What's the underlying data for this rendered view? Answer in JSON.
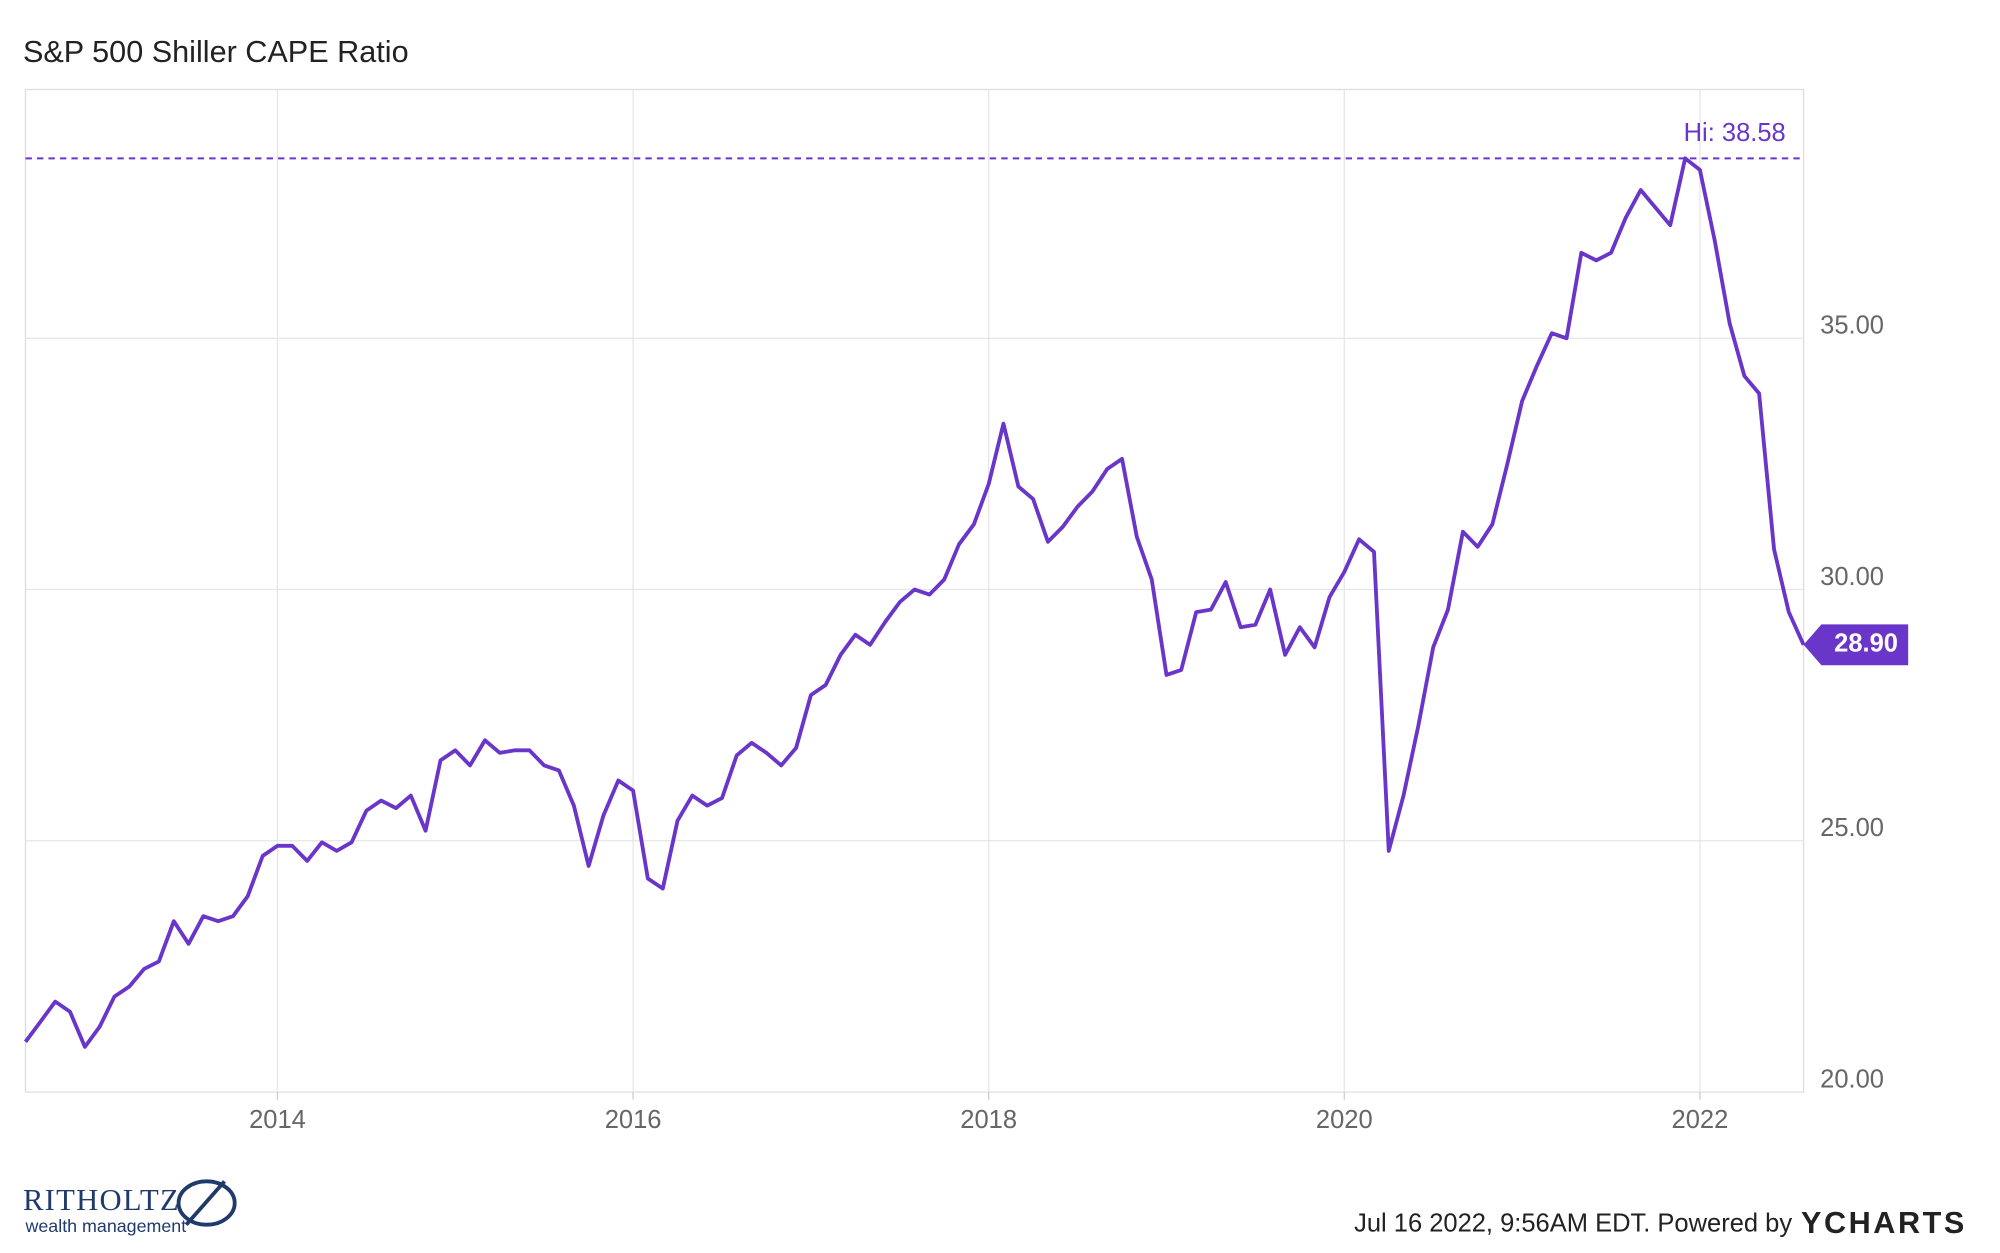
{
  "chart_data": {
    "type": "line",
    "title": "S&P 500 Shiller CAPE Ratio",
    "x": [
      2012.583,
      2012.667,
      2012.75,
      2012.833,
      2012.917,
      2013,
      2013.083,
      2013.167,
      2013.25,
      2013.333,
      2013.417,
      2013.5,
      2013.583,
      2013.667,
      2013.75,
      2013.833,
      2013.917,
      2014,
      2014.083,
      2014.167,
      2014.25,
      2014.333,
      2014.417,
      2014.5,
      2014.583,
      2014.667,
      2014.75,
      2014.833,
      2014.917,
      2015,
      2015.083,
      2015.167,
      2015.25,
      2015.333,
      2015.417,
      2015.5,
      2015.583,
      2015.667,
      2015.75,
      2015.833,
      2015.917,
      2016,
      2016.083,
      2016.167,
      2016.25,
      2016.333,
      2016.417,
      2016.5,
      2016.583,
      2016.667,
      2016.75,
      2016.833,
      2016.917,
      2017,
      2017.083,
      2017.167,
      2017.25,
      2017.333,
      2017.417,
      2017.5,
      2017.583,
      2017.667,
      2017.75,
      2017.833,
      2017.917,
      2018,
      2018.083,
      2018.167,
      2018.25,
      2018.333,
      2018.417,
      2018.5,
      2018.583,
      2018.667,
      2018.75,
      2018.833,
      2018.917,
      2019,
      2019.083,
      2019.167,
      2019.25,
      2019.333,
      2019.417,
      2019.5,
      2019.583,
      2019.667,
      2019.75,
      2019.833,
      2019.917,
      2020,
      2020.083,
      2020.167,
      2020.25,
      2020.333,
      2020.417,
      2020.5,
      2020.583,
      2020.667,
      2020.75,
      2020.833,
      2020.917,
      2021,
      2021.083,
      2021.167,
      2021.25,
      2021.333,
      2021.417,
      2021.5,
      2021.583,
      2021.667,
      2021.75,
      2021.833,
      2021.917,
      2022,
      2022.083,
      2022.167,
      2022.25,
      2022.333,
      2022.417,
      2022.5,
      2022.583
    ],
    "series": [
      {
        "name": "S&P 500 Shiller CAPE Ratio",
        "color": "#6a35c9",
        "values": [
          21.0,
          21.4,
          21.8,
          21.6,
          20.9,
          21.3,
          21.9,
          22.1,
          22.45,
          22.6,
          23.4,
          22.95,
          23.5,
          23.4,
          23.5,
          23.9,
          24.7,
          24.9,
          24.9,
          24.6,
          24.97,
          24.8,
          24.97,
          25.6,
          25.8,
          25.65,
          25.9,
          25.2,
          26.6,
          26.8,
          26.5,
          27.0,
          26.75,
          26.8,
          26.8,
          26.5,
          26.4,
          25.7,
          24.5,
          25.5,
          26.2,
          26.0,
          24.25,
          24.05,
          25.4,
          25.9,
          25.7,
          25.85,
          26.7,
          26.95,
          26.75,
          26.5,
          26.85,
          27.9,
          28.1,
          28.7,
          29.1,
          28.9,
          29.35,
          29.75,
          30.0,
          29.9,
          30.2,
          30.9,
          31.3,
          32.1,
          33.3,
          32.05,
          31.8,
          30.95,
          31.25,
          31.65,
          31.95,
          32.4,
          32.6,
          31.05,
          30.2,
          28.3,
          28.4,
          29.55,
          29.6,
          30.15,
          29.25,
          29.3,
          30.0,
          28.7,
          29.25,
          28.85,
          29.85,
          30.35,
          31.0,
          30.75,
          24.8,
          25.9,
          27.3,
          28.85,
          29.6,
          31.15,
          30.85,
          31.3,
          32.5,
          33.75,
          34.45,
          35.1,
          35.0,
          36.7,
          36.55,
          36.7,
          37.4,
          37.95,
          37.6,
          37.25,
          38.58,
          38.35,
          36.95,
          35.3,
          34.25,
          33.9,
          30.8,
          29.55,
          28.9
        ]
      }
    ],
    "xlim": [
      2012.583,
      2022.583
    ],
    "xticks": [
      2014,
      2016,
      2018,
      2020,
      2022
    ],
    "ylim": [
      20,
      39.95
    ],
    "yticks": [
      {
        "value": 20,
        "label": "20.00"
      },
      {
        "value": 25,
        "label": "25.00"
      },
      {
        "value": 30,
        "label": "30.00"
      },
      {
        "value": 35,
        "label": "35.00"
      }
    ],
    "grid": true,
    "hi_line": {
      "value": 38.58,
      "label": "Hi: 38.58"
    },
    "last_value": {
      "value": 28.9,
      "label": "28.90"
    }
  },
  "footer": {
    "timestamp": "Jul 16 2022, 9:56AM EDT. Powered by",
    "brand": "YCHARTS",
    "logo_name": "RITHOLTZ",
    "logo_tagline": "wealth management"
  }
}
